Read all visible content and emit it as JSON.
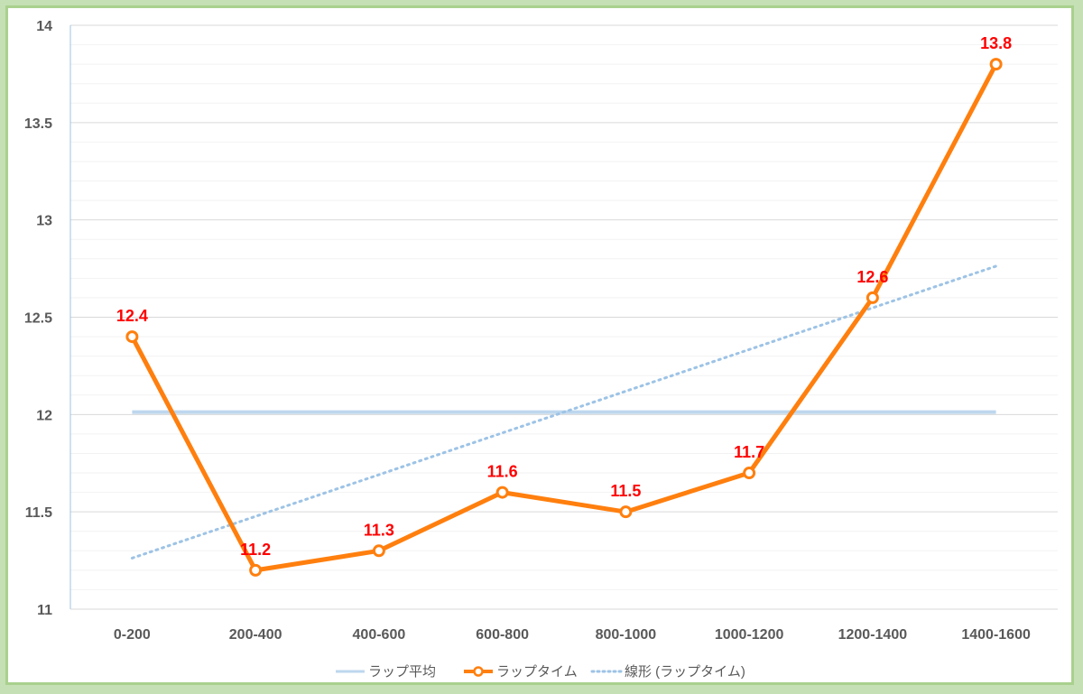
{
  "chart_data": {
    "type": "line",
    "title": "",
    "xlabel": "",
    "ylabel": "",
    "categories": [
      "0-200",
      "200-400",
      "400-600",
      "600-800",
      "800-1000",
      "1000-1200",
      "1200-1400",
      "1400-1600"
    ],
    "ylim": [
      11,
      14
    ],
    "y_ticks": [
      "11",
      "11.5",
      "12",
      "12.5",
      "13",
      "13.5",
      "14"
    ],
    "grid": true,
    "legend_position": "bottom",
    "series": [
      {
        "name": "ラップ平均",
        "values": [
          12.0125,
          12.0125,
          12.0125,
          12.0125,
          12.0125,
          12.0125,
          12.0125,
          12.0125
        ],
        "style": "solid",
        "color": "#bdd7ee"
      },
      {
        "name": "ラップタイム",
        "values": [
          12.4,
          11.2,
          11.3,
          11.6,
          11.5,
          11.7,
          12.6,
          13.8
        ],
        "data_labels": [
          "12.4",
          "11.2",
          "11.3",
          "11.6",
          "11.5",
          "11.7",
          "12.6",
          "13.8"
        ],
        "style": "solid-markers",
        "color": "#ff7f0e"
      },
      {
        "name": "線形 (ラップタイム)",
        "values": [
          11.2625,
          11.4768,
          11.6911,
          11.9054,
          12.1196,
          12.3339,
          12.5482,
          12.7625
        ],
        "style": "dotted",
        "color": "#9dc3e6"
      }
    ],
    "data_label_color": "#ff0000"
  }
}
